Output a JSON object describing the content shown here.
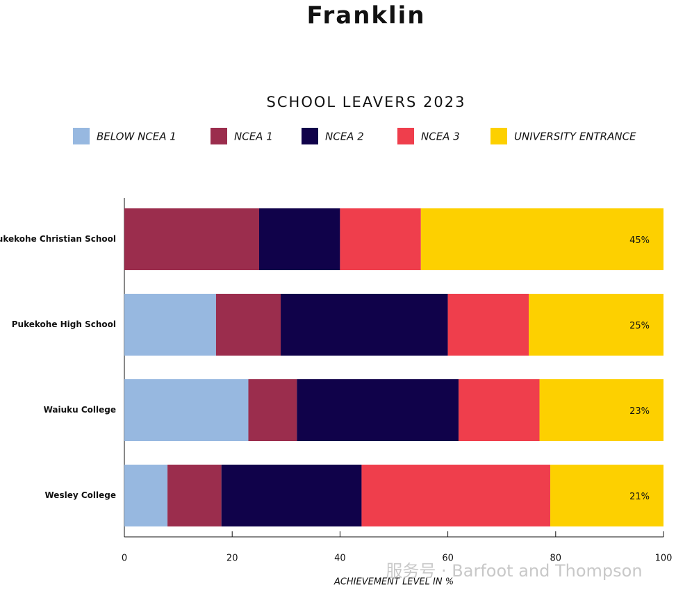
{
  "chart_data": {
    "type": "stacked-barh",
    "title": "Franklin",
    "subtitle": "SCHOOL LEAVERS 2023",
    "xlabel": "ACHIEVEMENT LEVEL IN %",
    "watermark": "服务号 · Barfoot and Thompson",
    "categories": [
      "Pukekohe Christian School",
      "Pukekohe High School",
      "Waiuku College",
      "Wesley College"
    ],
    "series": [
      {
        "name": "BELOW NCEA 1",
        "color": "#97b8e0",
        "values": [
          0,
          17,
          23,
          8
        ]
      },
      {
        "name": "NCEA 1",
        "color": "#9b2d4d",
        "values": [
          25,
          12,
          9,
          10
        ]
      },
      {
        "name": "NCEA 2",
        "color": "#10024a",
        "values": [
          15,
          31,
          30,
          26
        ]
      },
      {
        "name": "NCEA 3",
        "color": "#ef3e4c",
        "values": [
          15,
          15,
          15,
          35
        ]
      },
      {
        "name": "UNIVERSITY ENTRANCE",
        "color": "#fdd000",
        "values": [
          45,
          25,
          23,
          21
        ],
        "value_labels": [
          "45%",
          "25%",
          "23%",
          "21%"
        ]
      }
    ],
    "xlim": [
      0,
      100
    ],
    "xticks": [
      0,
      20,
      40,
      60,
      80,
      100
    ]
  }
}
